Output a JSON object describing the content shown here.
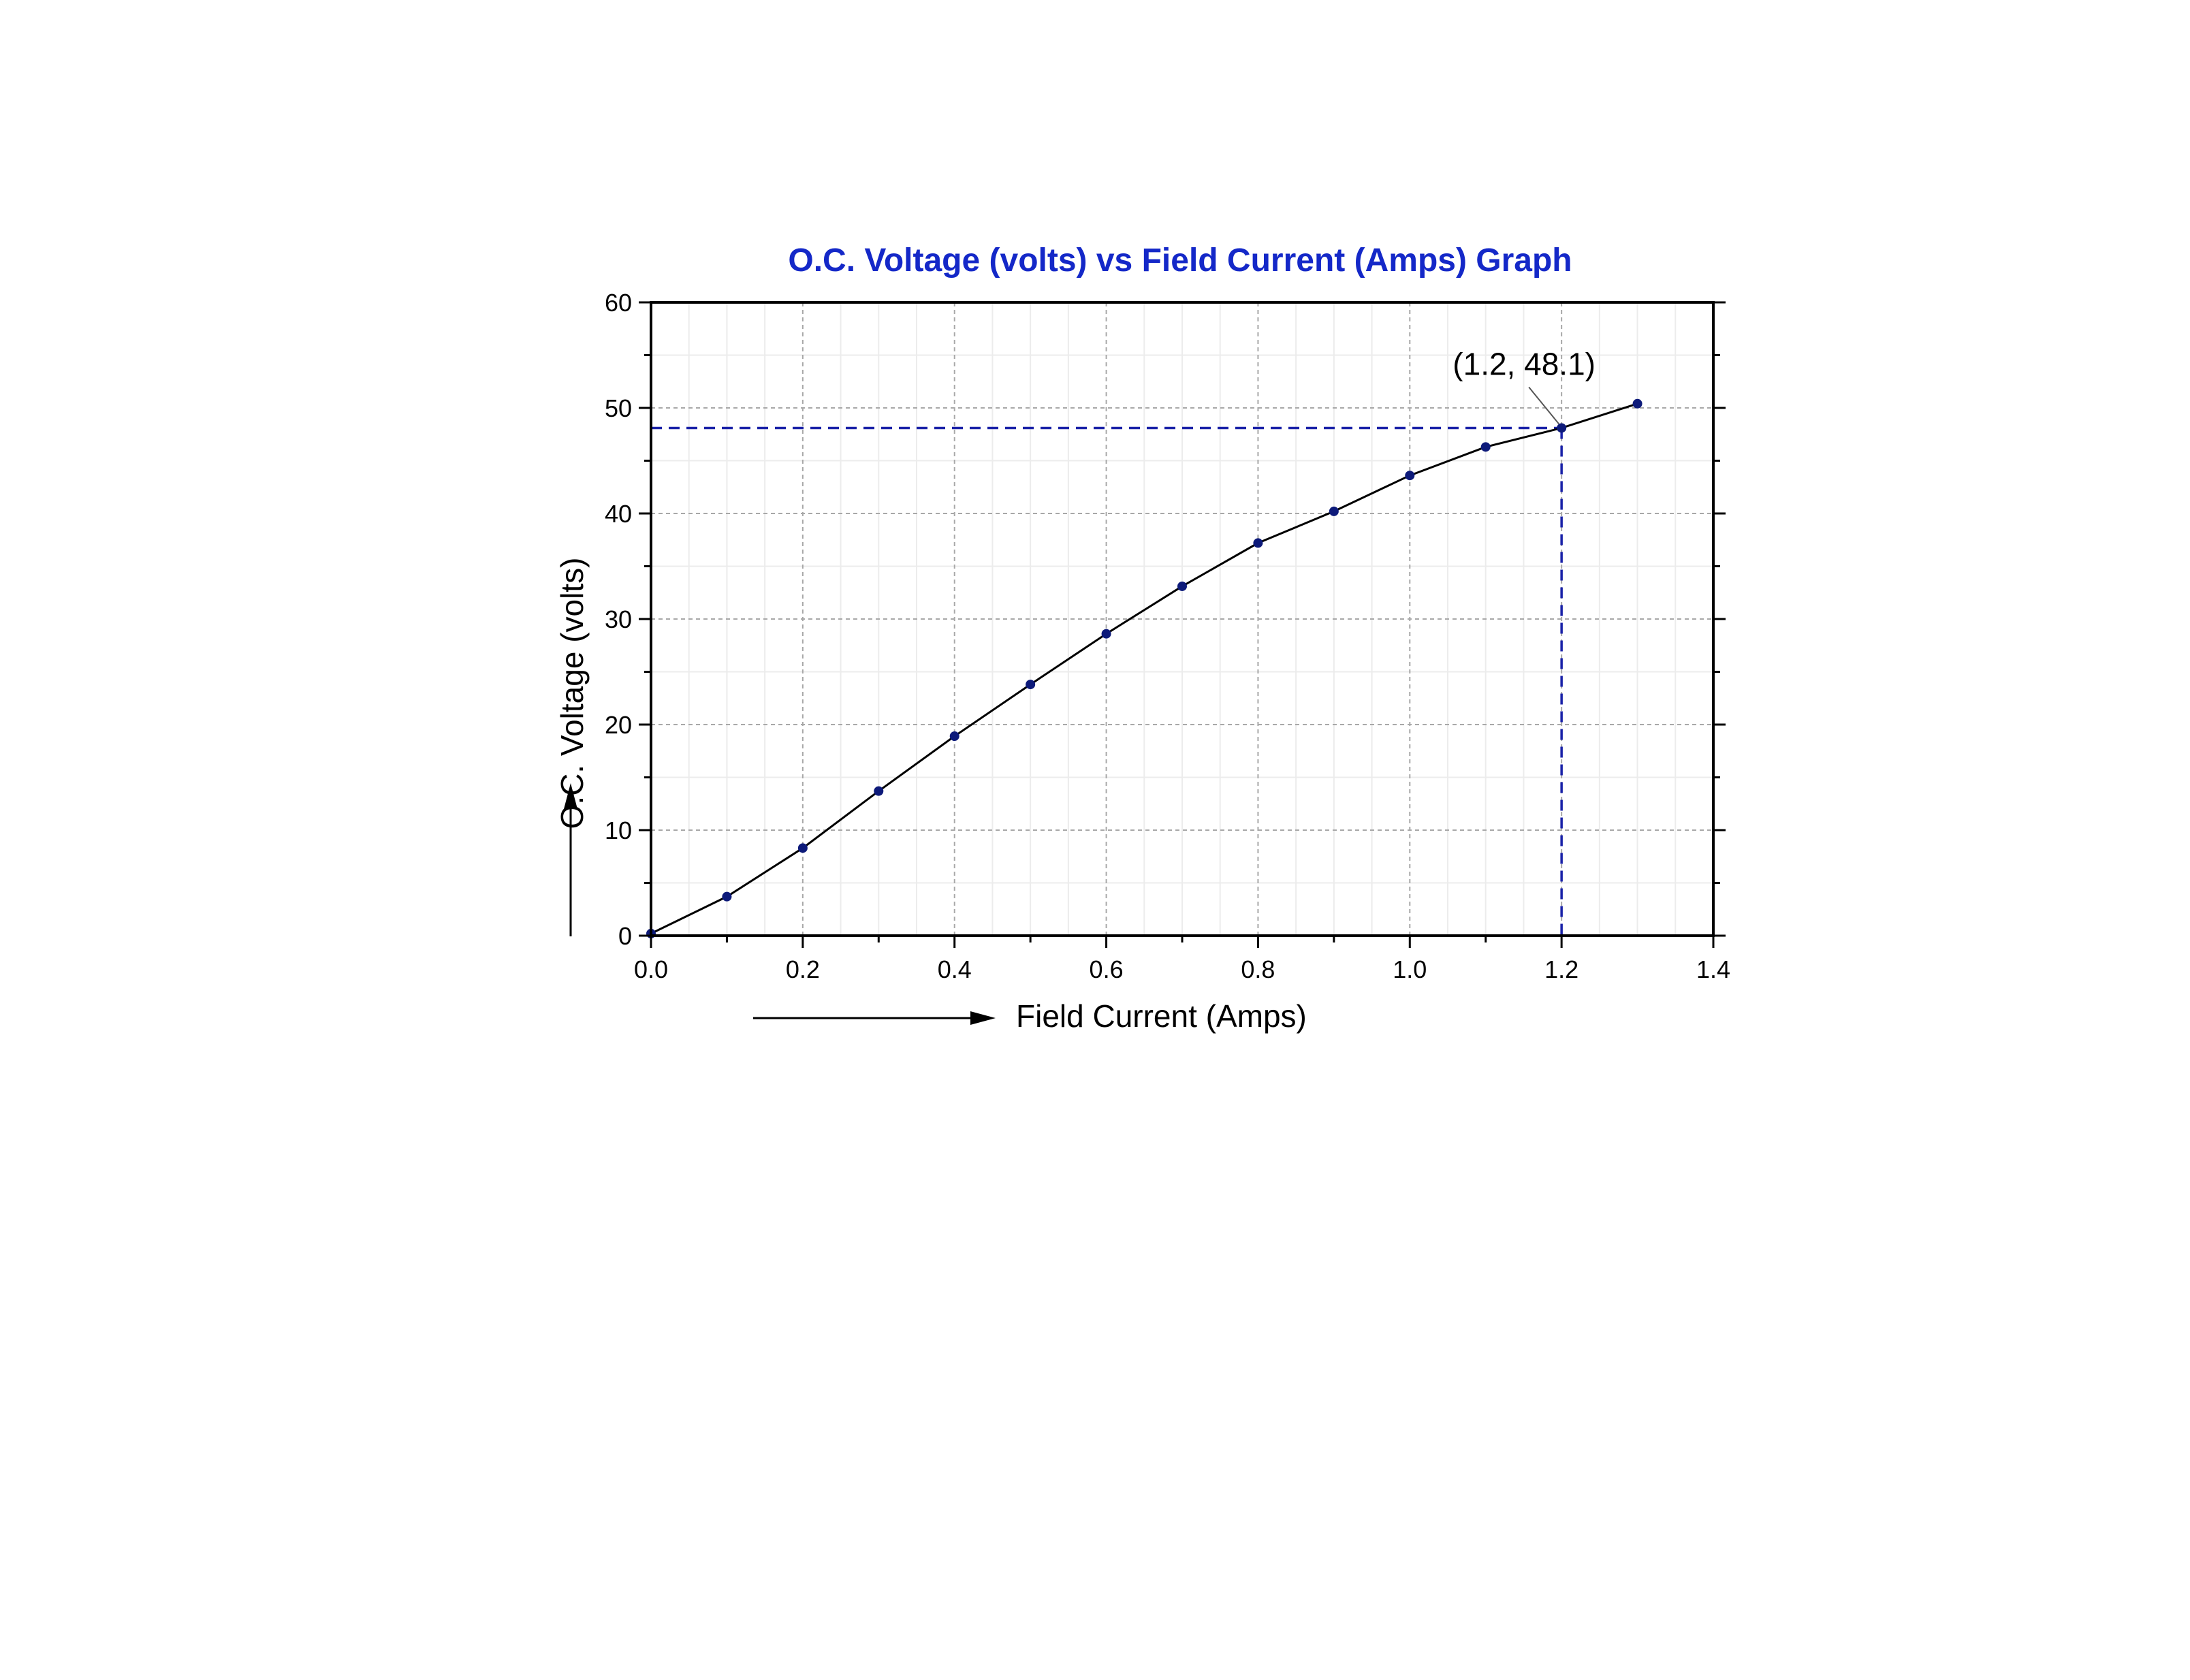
{
  "colors": {
    "title": "#1428c8",
    "series_line": "#000000",
    "marker": "#0d1a7a",
    "reference_line": "#1a22a8",
    "grid_major": "#a8a8a8",
    "grid_minor": "#ececec",
    "axis": "#000000"
  },
  "chart_data": {
    "type": "line",
    "title": "O.C. Voltage (volts)  vs Field Current (Amps) Graph",
    "xlabel": "Field Current (Amps)",
    "ylabel": "O.C. Voltage (volts)",
    "xlim": [
      0,
      1.4
    ],
    "ylim": [
      0,
      60
    ],
    "x_ticks": [
      "0.0",
      "0.2",
      "0.4",
      "0.6",
      "0.8",
      "1.0",
      "1.2",
      "1.4"
    ],
    "y_ticks": [
      "0",
      "10",
      "20",
      "30",
      "40",
      "50",
      "60"
    ],
    "grid": true,
    "x": [
      0.0,
      0.1,
      0.2,
      0.3,
      0.4,
      0.5,
      0.6,
      0.7,
      0.8,
      0.9,
      1.0,
      1.1,
      1.2,
      1.3
    ],
    "y": [
      0.2,
      3.7,
      8.3,
      13.7,
      18.9,
      23.8,
      28.6,
      33.1,
      37.2,
      40.2,
      43.6,
      46.3,
      48.1,
      50.4
    ],
    "annotation": {
      "text": "(1.2, 48.1)",
      "x": 1.2,
      "y": 48.1
    }
  }
}
